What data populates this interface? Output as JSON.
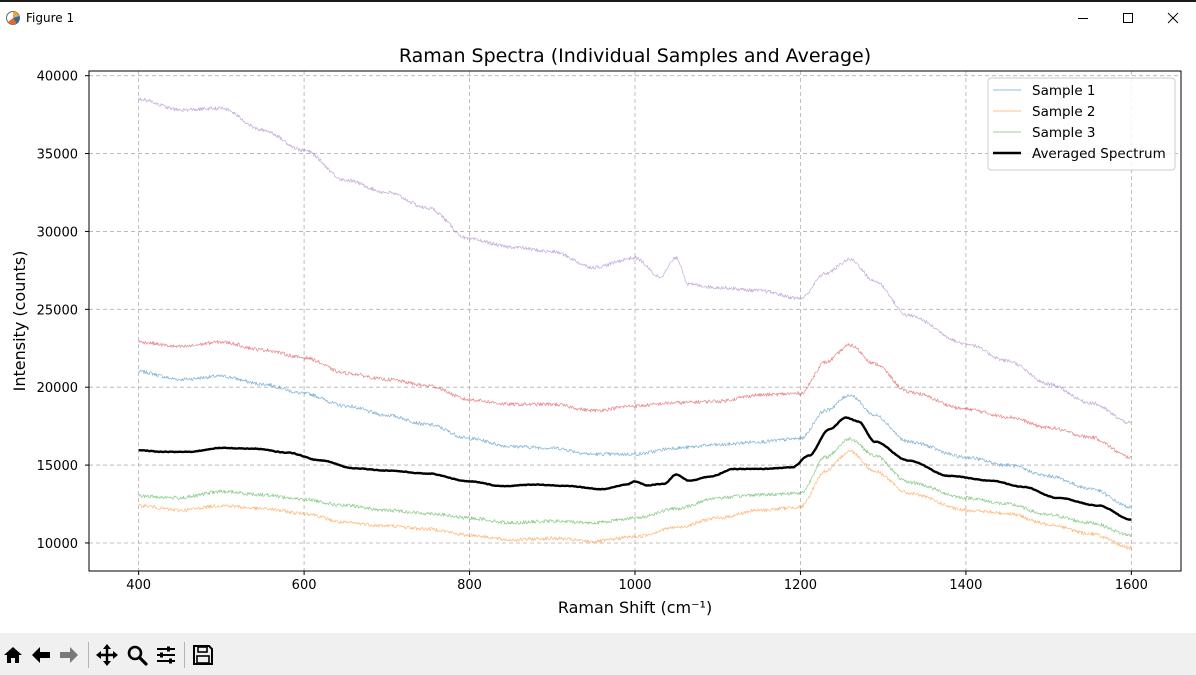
{
  "window": {
    "title": "Figure 1"
  },
  "toolbar": {
    "buttons": [
      "home-icon",
      "back-icon",
      "forward-icon",
      "pan-icon",
      "zoom-icon",
      "configure-subplots-icon",
      "save-icon"
    ]
  },
  "chart_data": {
    "type": "line",
    "title": "Raman Spectra (Individual Samples and Average)",
    "xlabel": "Raman Shift (cm⁻¹)",
    "ylabel": "Intensity (counts)",
    "xlim": [
      340,
      1660
    ],
    "ylim": [
      8200,
      40300
    ],
    "xticks": [
      400,
      600,
      800,
      1000,
      1200,
      1400,
      1600
    ],
    "yticks": [
      10000,
      15000,
      20000,
      25000,
      30000,
      35000,
      40000
    ],
    "grid": true,
    "legend_position": "upper-right",
    "series": [
      {
        "name": "Sample 1",
        "color": "#1f77b4",
        "style": "thin",
        "x": [
          400,
          450,
          500,
          550,
          600,
          650,
          700,
          750,
          800,
          850,
          900,
          950,
          1000,
          1050,
          1100,
          1150,
          1200,
          1230,
          1260,
          1290,
          1330,
          1400,
          1450,
          1500,
          1550,
          1600
        ],
        "y": [
          21000,
          20500,
          20700,
          20200,
          19600,
          18800,
          18200,
          17600,
          16700,
          16200,
          16100,
          15700,
          15700,
          16100,
          16300,
          16500,
          16700,
          18500,
          19500,
          18200,
          16500,
          15500,
          15000,
          14300,
          13500,
          12300
        ]
      },
      {
        "name": "Sample 2",
        "color": "#ff7f0e",
        "style": "thin",
        "x": [
          400,
          450,
          500,
          550,
          600,
          650,
          700,
          750,
          800,
          850,
          900,
          950,
          1000,
          1050,
          1100,
          1150,
          1200,
          1230,
          1260,
          1290,
          1330,
          1400,
          1450,
          1500,
          1550,
          1600
        ],
        "y": [
          12400,
          12100,
          12400,
          12200,
          11900,
          11300,
          11100,
          10900,
          10500,
          10200,
          10300,
          10100,
          10400,
          11000,
          11600,
          12100,
          12300,
          14600,
          15900,
          14600,
          13200,
          12100,
          11900,
          11200,
          10600,
          9700
        ]
      },
      {
        "name": "Sample 3",
        "color": "#2ca02c",
        "style": "thin",
        "x": [
          400,
          450,
          500,
          550,
          600,
          650,
          700,
          750,
          800,
          850,
          900,
          950,
          1000,
          1050,
          1100,
          1150,
          1200,
          1230,
          1260,
          1290,
          1330,
          1400,
          1450,
          1500,
          1550,
          1600
        ],
        "y": [
          13000,
          12900,
          13300,
          13100,
          12800,
          12400,
          12100,
          11900,
          11600,
          11300,
          11400,
          11300,
          11600,
          12200,
          12900,
          13100,
          13200,
          15500,
          16700,
          15600,
          13900,
          12900,
          12500,
          11800,
          11300,
          10500
        ]
      },
      {
        "name": "",
        "color": "#d62728",
        "style": "thin",
        "x": [
          400,
          450,
          500,
          550,
          600,
          650,
          700,
          750,
          800,
          850,
          900,
          950,
          1000,
          1050,
          1100,
          1150,
          1200,
          1230,
          1260,
          1290,
          1330,
          1400,
          1450,
          1500,
          1550,
          1600
        ],
        "y": [
          22900,
          22600,
          22900,
          22400,
          21900,
          20900,
          20500,
          20100,
          19200,
          18900,
          18900,
          18500,
          18800,
          19000,
          19100,
          19500,
          19600,
          21600,
          22700,
          21500,
          19700,
          18600,
          18100,
          17400,
          16800,
          15500
        ]
      },
      {
        "name": "",
        "color": "#9467bd",
        "style": "thin",
        "x": [
          400,
          450,
          500,
          550,
          600,
          650,
          700,
          750,
          800,
          850,
          900,
          950,
          1000,
          1030,
          1050,
          1065,
          1100,
          1150,
          1200,
          1230,
          1260,
          1290,
          1330,
          1400,
          1450,
          1500,
          1550,
          1600
        ],
        "y": [
          38500,
          37800,
          37900,
          36500,
          35200,
          33300,
          32500,
          31500,
          29500,
          29000,
          28700,
          27700,
          28300,
          27100,
          28300,
          26600,
          26400,
          26200,
          25700,
          27300,
          28200,
          26800,
          24600,
          22800,
          21700,
          20200,
          19000,
          17700
        ]
      },
      {
        "name": "Averaged Spectrum",
        "color": "#000000",
        "style": "bold",
        "x": [
          400,
          430,
          460,
          500,
          540,
          580,
          620,
          660,
          700,
          750,
          800,
          840,
          880,
          920,
          960,
          990,
          1000,
          1015,
          1035,
          1050,
          1065,
          1090,
          1120,
          1150,
          1190,
          1210,
          1235,
          1255,
          1270,
          1290,
          1330,
          1380,
          1430,
          1470,
          1510,
          1560,
          1600
        ],
        "y": [
          15950,
          15850,
          15850,
          16100,
          16050,
          15800,
          15300,
          14800,
          14650,
          14450,
          13950,
          13650,
          13750,
          13650,
          13450,
          13750,
          13950,
          13700,
          13800,
          14400,
          14000,
          14250,
          14750,
          14750,
          14850,
          15600,
          17300,
          18050,
          17800,
          16500,
          15300,
          14300,
          14000,
          13600,
          12900,
          12400,
          11500
        ]
      }
    ]
  }
}
